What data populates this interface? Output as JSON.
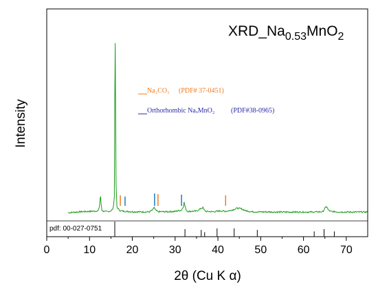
{
  "chart_data": {
    "type": "line",
    "title": {
      "prefix": "XRD_Na",
      "sub": "0.53",
      "suffix": "MnO",
      "sub2": "2"
    },
    "xlabel": "2θ (Cu K α)",
    "ylabel": "Intensity",
    "xlim": [
      0,
      75
    ],
    "xticks": [
      0,
      10,
      20,
      30,
      40,
      50,
      60,
      70
    ],
    "grid": false,
    "series": [
      {
        "type": "line",
        "color": "#1a9a1a",
        "x": [
          5.0,
          8.0,
          10.0,
          12.0,
          12.3,
          12.5,
          12.6,
          12.7,
          12.9,
          13.2,
          14.0,
          15.0,
          15.5,
          15.8,
          15.9,
          16.0,
          16.1,
          16.2,
          16.4,
          17.0,
          18.0,
          20.0,
          22.0,
          24.0,
          24.8,
          25.1,
          25.4,
          26.0,
          28.0,
          30.0,
          31.5,
          31.9,
          32.1,
          32.3,
          32.6,
          33.0,
          35.0,
          36.2,
          36.5,
          36.8,
          37.2,
          39.0,
          40.5,
          42.0,
          43.5,
          44.5,
          45.5,
          46.5,
          48.0,
          50.0,
          52.0,
          54.0,
          56.0,
          58.0,
          60.0,
          62.0,
          64.5,
          65.1,
          65.4,
          65.7,
          66.2,
          68.0,
          70.0,
          72.0,
          75.0
        ],
        "y": [
          0.4,
          1.0,
          1.2,
          1.5,
          4.0,
          9.5,
          10.0,
          6.0,
          2.0,
          1.3,
          1.0,
          1.5,
          3.0,
          10.0,
          70.0,
          105.0,
          60.0,
          18.0,
          4.0,
          1.8,
          1.3,
          1.0,
          0.9,
          0.9,
          2.2,
          3.8,
          2.0,
          1.0,
          1.0,
          1.2,
          2.0,
          4.0,
          6.8,
          4.5,
          2.0,
          1.2,
          1.4,
          3.2,
          3.5,
          2.0,
          1.2,
          1.0,
          1.5,
          1.3,
          2.2,
          3.2,
          2.8,
          1.6,
          1.0,
          0.9,
          0.9,
          0.8,
          0.8,
          0.8,
          0.8,
          0.8,
          1.0,
          3.5,
          4.2,
          2.5,
          1.2,
          0.9,
          0.8,
          0.8,
          0.8
        ]
      }
    ],
    "legend": [
      {
        "label": "Na₂CO₃",
        "pdf": "(PDF# 37-0451)",
        "color": "#f07a1e"
      },
      {
        "label": "Orthorhombic NaₓMnO₂",
        "pdf": "(PDF#38-0965)",
        "color": "#2a2aa8"
      }
    ],
    "reference_markers": [
      {
        "series": "Na2CO3",
        "color": "#f07a1e",
        "positions": [
          17.2,
          26.0,
          41.8
        ],
        "heights": [
          0.85,
          0.95,
          0.85
        ]
      },
      {
        "series": "Orthorhombic",
        "color": "#1f77c4",
        "positions": [
          18.3,
          25.2,
          31.5
        ],
        "heights": [
          0.75,
          1.0,
          0.9
        ]
      }
    ],
    "pdf_reference": {
      "label": "pdf: 00-027-0751",
      "color": "#000000",
      "positions": [
        15.9,
        32.3,
        36.1,
        36.9,
        39.8,
        43.8,
        49.2,
        62.5,
        64.8,
        67.2
      ],
      "heights": [
        1.0,
        0.5,
        0.45,
        0.3,
        0.55,
        0.55,
        0.45,
        0.35,
        0.5,
        0.35
      ]
    }
  }
}
